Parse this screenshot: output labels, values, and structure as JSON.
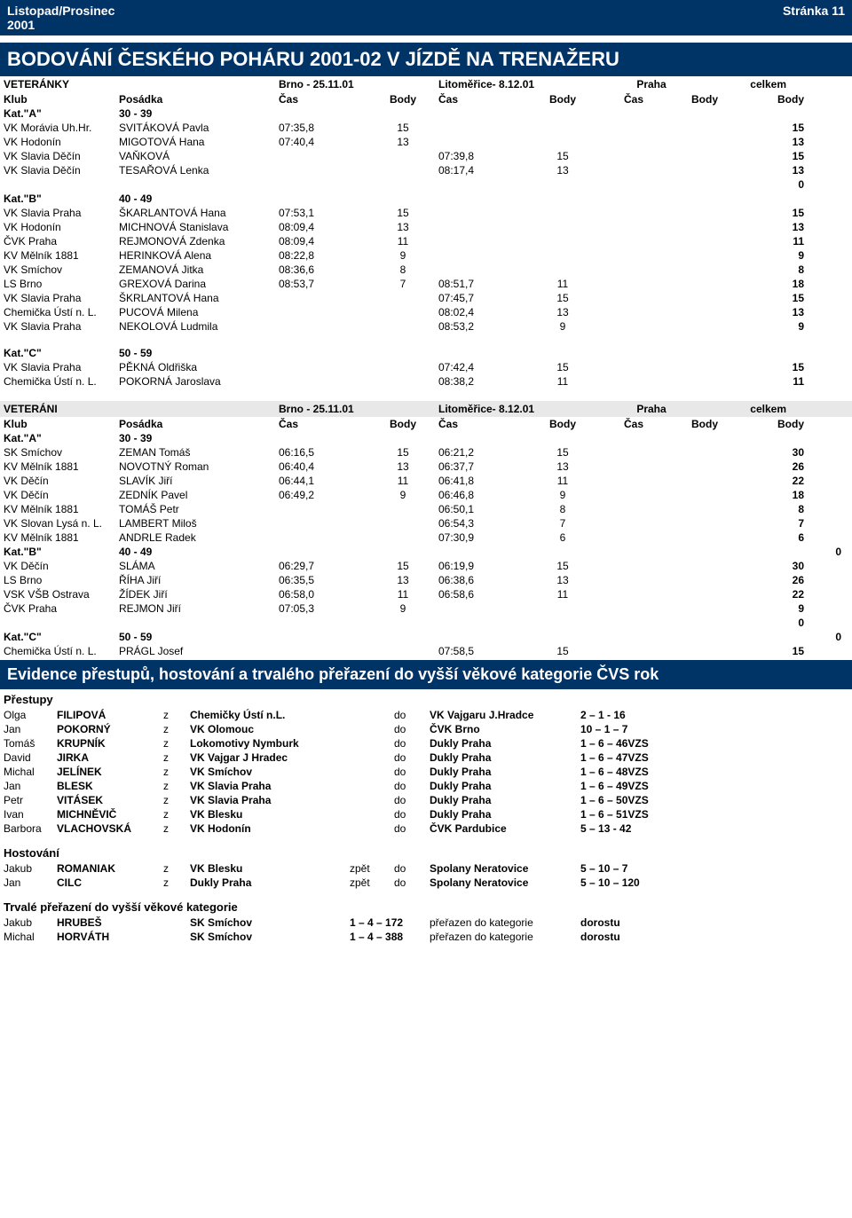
{
  "header": {
    "left_top": "Listopad/Prosinec",
    "left_bottom": "2001",
    "right": "Stránka 11"
  },
  "title": "BODOVÁNÍ ČESKÉHO POHÁRU 2001-02 V JÍZDĚ NA TRENAŽERU",
  "events_f": {
    "label": "VETERÁNKY",
    "e1": "Brno - 25.11.01",
    "e2": "Litoměřice- 8.12.01",
    "e3": "Praha",
    "total": "celkem"
  },
  "colhead": {
    "klub": "Klub",
    "pos": "Posádka",
    "cas": "Čas",
    "body": "Body"
  },
  "catA_f": {
    "label": "Kat.\"A\"",
    "range": "30 - 39",
    "rows": [
      {
        "klub": "VK Morávia Uh.Hr.",
        "pos": "SVITÁKOVÁ Pavla",
        "c1": "07:35,8",
        "b1": "15",
        "c2": "",
        "b2": "",
        "total": "15"
      },
      {
        "klub": "VK Hodonín",
        "pos": "MIGOTOVÁ Hana",
        "c1": "07:40,4",
        "b1": "13",
        "c2": "",
        "b2": "",
        "total": "13"
      },
      {
        "klub": "VK Slavia Děčín",
        "pos": "VAŇKOVÁ",
        "c1": "",
        "b1": "",
        "c2": "07:39,8",
        "b2": "15",
        "total": "15"
      },
      {
        "klub": "VK Slavia Děčín",
        "pos": "TESAŘOVÁ Lenka",
        "c1": "",
        "b1": "",
        "c2": "08:17,4",
        "b2": "13",
        "total": "13"
      },
      {
        "klub": "",
        "pos": "",
        "c1": "",
        "b1": "",
        "c2": "",
        "b2": "",
        "total": "0"
      }
    ]
  },
  "catB_f": {
    "label": "Kat.\"B\"",
    "range": "40 - 49",
    "rows": [
      {
        "klub": "VK Slavia Praha",
        "pos": "ŠKARLANTOVÁ Hana",
        "c1": "07:53,1",
        "b1": "15",
        "c2": "",
        "b2": "",
        "total": "15"
      },
      {
        "klub": "VK Hodonín",
        "pos": "MICHNOVÁ Stanislava",
        "c1": "08:09,4",
        "b1": "13",
        "c2": "",
        "b2": "",
        "total": "13"
      },
      {
        "klub": "ČVK Praha",
        "pos": "REJMONOVÁ Zdenka",
        "c1": "08:09,4",
        "b1": "11",
        "c2": "",
        "b2": "",
        "total": "11"
      },
      {
        "klub": "KV Mělník 1881",
        "pos": "HERINKOVÁ Alena",
        "c1": "08:22,8",
        "b1": "9",
        "c2": "",
        "b2": "",
        "total": "9"
      },
      {
        "klub": "VK Smíchov",
        "pos": "ZEMANOVÁ Jitka",
        "c1": "08:36,6",
        "b1": "8",
        "c2": "",
        "b2": "",
        "total": "8"
      },
      {
        "klub": "LS Brno",
        "pos": "GREXOVÁ Darina",
        "c1": "08:53,7",
        "b1": "7",
        "c2": "08:51,7",
        "b2": "11",
        "total": "18"
      },
      {
        "klub": "VK Slavia Praha",
        "pos": "ŠKRLANTOVÁ Hana",
        "c1": "",
        "b1": "",
        "c2": "07:45,7",
        "b2": "15",
        "total": "15"
      },
      {
        "klub": "Chemička Ústí n. L.",
        "pos": "PUCOVÁ Milena",
        "c1": "",
        "b1": "",
        "c2": "08:02,4",
        "b2": "13",
        "total": "13"
      },
      {
        "klub": "VK Slavia Praha",
        "pos": "NEKOLOVÁ Ludmila",
        "c1": "",
        "b1": "",
        "c2": "08:53,2",
        "b2": "9",
        "total": "9"
      }
    ]
  },
  "catC_f": {
    "label": "Kat.\"C\"",
    "range": "50 - 59",
    "rows": [
      {
        "klub": "VK Slavia Praha",
        "pos": "PĚKNÁ Oldřiška",
        "c1": "",
        "b1": "",
        "c2": "07:42,4",
        "b2": "15",
        "total": "15"
      },
      {
        "klub": "Chemička Ústí n. L.",
        "pos": "POKORNÁ Jaroslava",
        "c1": "",
        "b1": "",
        "c2": "08:38,2",
        "b2": "11",
        "total": "11"
      }
    ]
  },
  "events_m": {
    "label": "VETERÁNI",
    "e1": "Brno - 25.11.01",
    "e2": "Litoměřice- 8.12.01",
    "e3": "Praha",
    "total": "celkem"
  },
  "catA_m": {
    "label": "Kat.\"A\"",
    "range": "30 - 39",
    "rows": [
      {
        "klub": "SK Smíchov",
        "pos": "ZEMAN Tomáš",
        "c1": "06:16,5",
        "b1": "15",
        "c2": "06:21,2",
        "b2": "15",
        "total": "30"
      },
      {
        "klub": "KV Mělník 1881",
        "pos": "NOVOTNÝ Roman",
        "c1": "06:40,4",
        "b1": "13",
        "c2": "06:37,7",
        "b2": "13",
        "total": "26"
      },
      {
        "klub": "VK Děčín",
        "pos": "SLAVÍK Jiří",
        "c1": "06:44,1",
        "b1": "11",
        "c2": "06:41,8",
        "b2": "11",
        "total": "22"
      },
      {
        "klub": "VK Děčín",
        "pos": "ZEDNÍK Pavel",
        "c1": "06:49,2",
        "b1": "9",
        "c2": "06:46,8",
        "b2": "9",
        "total": "18"
      },
      {
        "klub": "KV Mělník 1881",
        "pos": "TOMÁŠ Petr",
        "c1": "",
        "b1": "",
        "c2": "06:50,1",
        "b2": "8",
        "total": "8"
      },
      {
        "klub": "VK Slovan Lysá n. L.",
        "pos": "LAMBERT Miloš",
        "c1": "",
        "b1": "",
        "c2": "06:54,3",
        "b2": "7",
        "total": "7"
      },
      {
        "klub": "KV Mělník 1881",
        "pos": "ANDRLE Radek",
        "c1": "",
        "b1": "",
        "c2": "07:30,9",
        "b2": "6",
        "total": "6"
      }
    ]
  },
  "catB_m": {
    "label": "Kat.\"B\"",
    "range": "40 - 49",
    "tail": "0",
    "rows": [
      {
        "klub": "VK Děčín",
        "pos": "SLÁMA",
        "c1": "06:29,7",
        "b1": "15",
        "c2": "06:19,9",
        "b2": "15",
        "total": "30"
      },
      {
        "klub": "LS Brno",
        "pos": "ŘÍHA Jiří",
        "c1": "06:35,5",
        "b1": "13",
        "c2": "06:38,6",
        "b2": "13",
        "total": "26"
      },
      {
        "klub": "VSK VŠB Ostrava",
        "pos": "ŽÍDEK Jiří",
        "c1": "06:58,0",
        "b1": "11",
        "c2": "06:58,6",
        "b2": "11",
        "total": "22"
      },
      {
        "klub": "ČVK Praha",
        "pos": "REJMON Jiří",
        "c1": "07:05,3",
        "b1": "9",
        "c2": "",
        "b2": "",
        "total": "9"
      },
      {
        "klub": "",
        "pos": "",
        "c1": "",
        "b1": "",
        "c2": "",
        "b2": "",
        "total": "0"
      }
    ]
  },
  "catC_m": {
    "label": "Kat.\"C\"",
    "range": "50 - 59",
    "tail": "0",
    "rows": [
      {
        "klub": "Chemička Ústí n. L.",
        "pos": "PRÁGL Josef",
        "c1": "",
        "b1": "",
        "c2": "07:58,5",
        "b2": "15",
        "total": "15"
      }
    ]
  },
  "transfers_title": "Evidence přestupů, hostování a trvalého přeřazení do vyšší věkové kategorie ČVS rok",
  "prestupy": {
    "label": "Přestupy",
    "rows": [
      {
        "fn": "Olga",
        "ln": "FILIPOVÁ",
        "from": "Chemičky Ústí n.L.",
        "to": "VK Vajgaru J.Hradce",
        "num": "2 – 1 - 16"
      },
      {
        "fn": "Jan",
        "ln": "POKORNÝ",
        "from": "VK Olomouc",
        "to": "ČVK Brno",
        "num": "10 – 1 – 7"
      },
      {
        "fn": "Tomáš",
        "ln": "KRUPNÍK",
        "from": "Lokomotivy Nymburk",
        "to": "Dukly Praha",
        "num": "1 – 6 – 46VZS"
      },
      {
        "fn": "David",
        "ln": "JIRKA",
        "from": "VK Vajgar J Hradec",
        "to": "Dukly Praha",
        "num": "1 – 6 – 47VZS"
      },
      {
        "fn": "Michal",
        "ln": "JELÍNEK",
        "from": "VK Smíchov",
        "to": "Dukly Praha",
        "num": "1 – 6 – 48VZS"
      },
      {
        "fn": "Jan",
        "ln": "BLESK",
        "from": "VK Slavia Praha",
        "to": "Dukly Praha",
        "num": "1 – 6 – 49VZS"
      },
      {
        "fn": "Petr",
        "ln": "VITÁSEK",
        "from": "VK Slavia Praha",
        "to": "Dukly Praha",
        "num": "1 – 6 – 50VZS"
      },
      {
        "fn": "Ivan",
        "ln": "MICHNĚVIČ",
        "from": "VK Blesku",
        "to": "Dukly Praha",
        "num": "1 – 6 – 51VZS"
      },
      {
        "fn": "Barbora",
        "ln": "VLACHOVSKÁ",
        "from": "VK Hodonín",
        "to": "ČVK Pardubice",
        "num": "5 – 13 - 42"
      }
    ]
  },
  "hostovani": {
    "label": "Hostování",
    "rows": [
      {
        "fn": "Jakub",
        "ln": "ROMANIAK",
        "from": "VK Blesku",
        "via": "zpět",
        "to": "Spolany Neratovice",
        "num": "5 – 10 – 7"
      },
      {
        "fn": "Jan",
        "ln": "CILC",
        "from": "Dukly Praha",
        "via": "zpět",
        "to": "Spolany Neratovice",
        "num": "5 – 10 – 120"
      }
    ]
  },
  "trvale": {
    "label": "Trvalé přeřazení do vyšší věkové kategorie",
    "rows": [
      {
        "fn": "Jakub",
        "ln": "HRUBEŠ",
        "from": "SK Smíchov",
        "mid": "1 – 4 – 172",
        "txt": "přeřazen do kategorie",
        "cat": "dorostu"
      },
      {
        "fn": "Michal",
        "ln": "HORVÁTH",
        "from": "SK Smíchov",
        "mid": "1 – 4 – 388",
        "txt": "přeřazen do kategorie",
        "cat": "dorostu"
      }
    ]
  },
  "z": "z",
  "do": "do"
}
